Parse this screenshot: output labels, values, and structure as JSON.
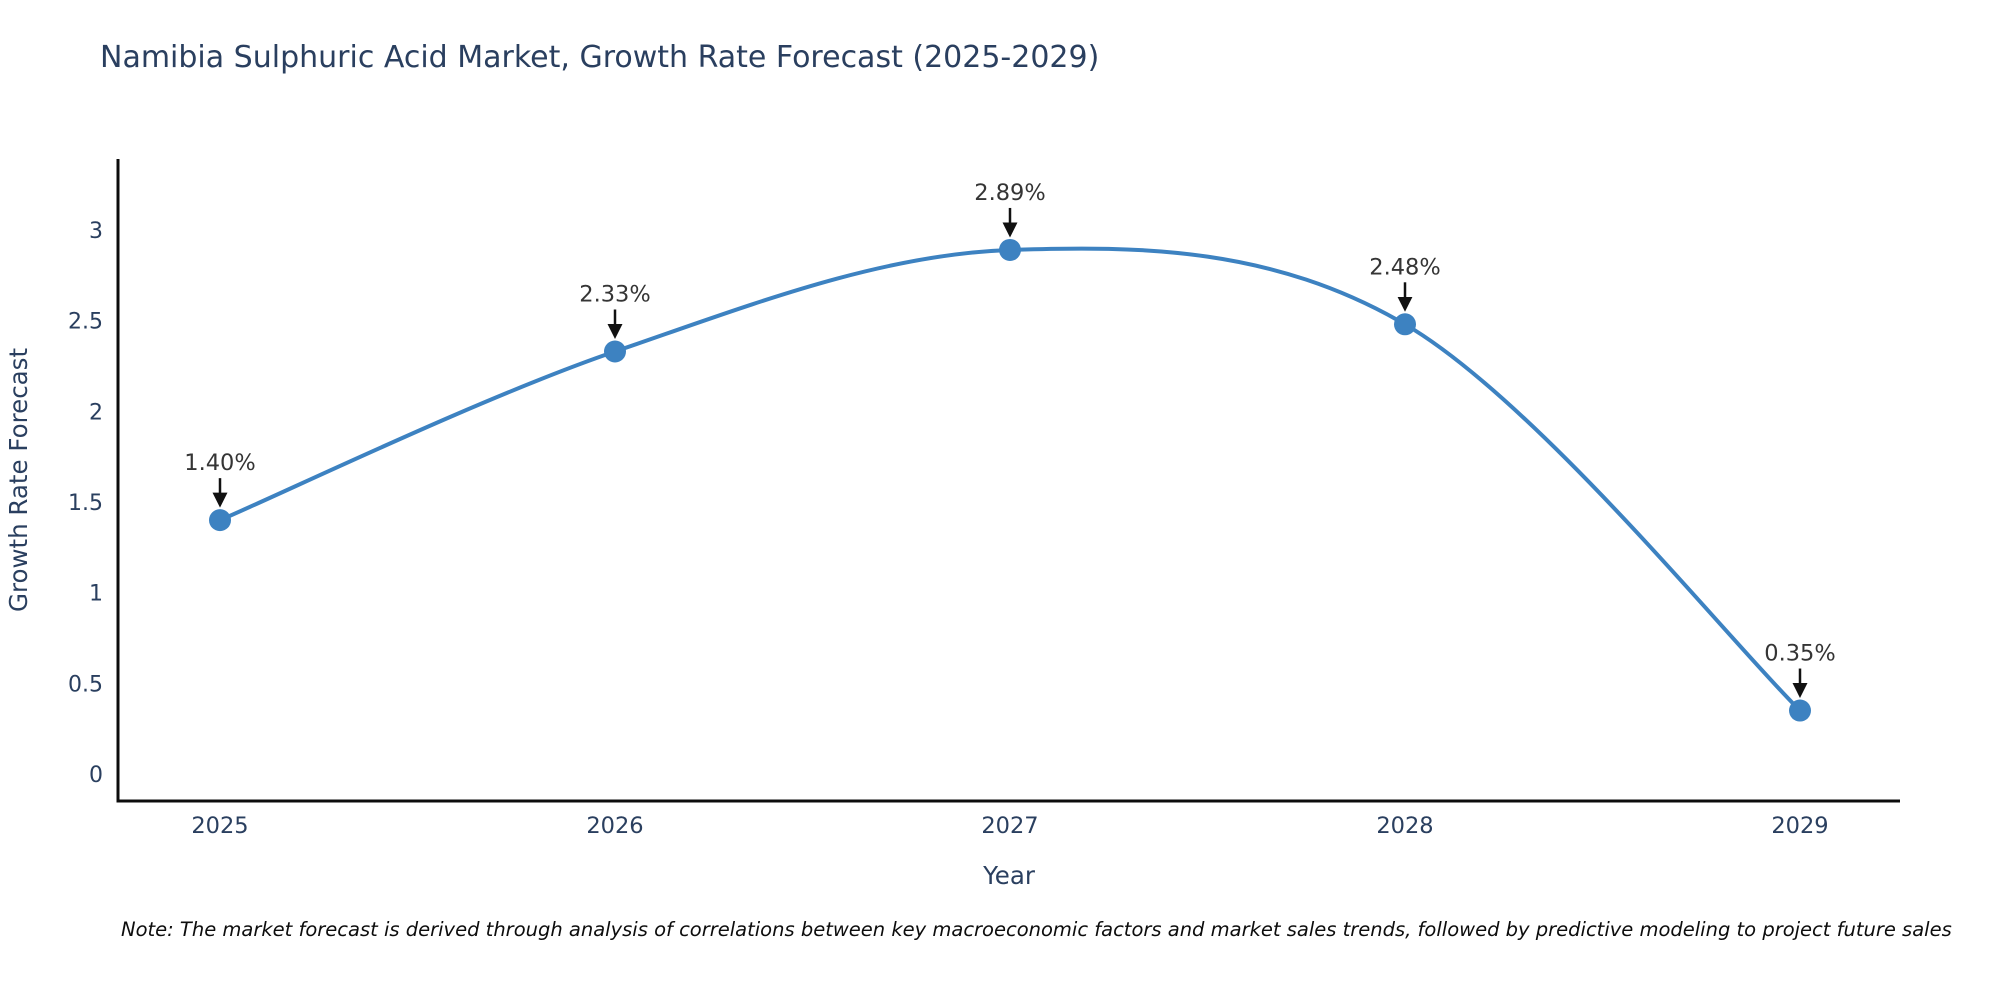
{
  "title": "Namibia Sulphuric Acid Market, Growth Rate Forecast (2025-2029)",
  "note": "Note: The market forecast is derived through analysis of correlations between key macroeconomic factors and market sales trends, followed by predictive modeling to project future sales",
  "chart_data": {
    "type": "line",
    "line_shape": "spline",
    "title": "Namibia Sulphuric Acid Market, Growth Rate Forecast (2025-2029)",
    "x": [
      "2025",
      "2026",
      "2027",
      "2028",
      "2029"
    ],
    "values": [
      1.4,
      2.33,
      2.89,
      2.48,
      0.35
    ],
    "point_labels": [
      "1.40%",
      "2.33%",
      "2.89%",
      "2.48%",
      "0.35%"
    ],
    "xlabel": "Year",
    "ylabel": "Growth Rate Forecast",
    "ytick_labels": [
      "0",
      "0.5",
      "1",
      "1.5",
      "2",
      "2.5",
      "3"
    ],
    "ylim": [
      -0.15,
      3.39
    ],
    "grid": false,
    "legend": false,
    "markers": true,
    "annotations_have_arrows": true,
    "colors": {
      "line": "#3d82c1",
      "marker": "#3d82c1",
      "axis_text": "#2a3f5f",
      "annotation_text": "#353535",
      "arrow": "#111111",
      "spine": "#0c0c0c"
    }
  }
}
